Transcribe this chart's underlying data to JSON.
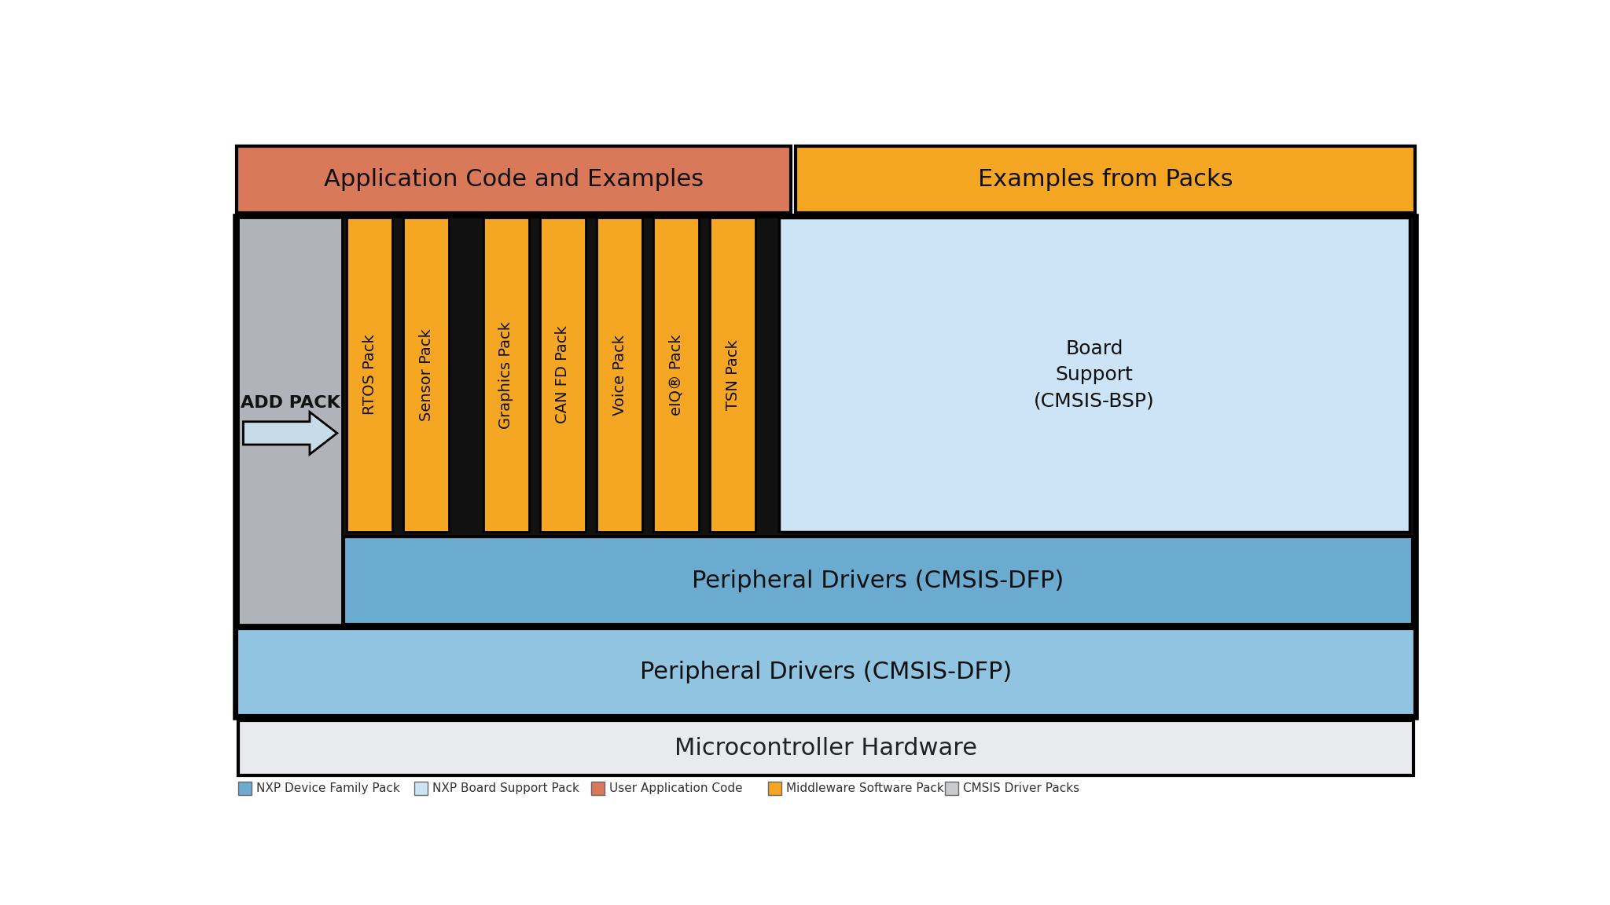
{
  "bg_color": "#ffffff",
  "app_code_color": "#d9795a",
  "app_code_text": "Application Code and Examples",
  "examples_packs_color": "#f5a623",
  "examples_packs_text": "Examples from Packs",
  "add_pack_text": "ADD PACK",
  "middleware_packs": [
    "RTOS Pack",
    "Sensor Pack",
    "Graphics Pack",
    "CAN FD Pack",
    "Voice Pack",
    "eIQ® Pack",
    "TSN Pack"
  ],
  "middleware_color": "#f5a623",
  "bsp_text": "Board\nSupport\n(CMSIS-BSP)",
  "bsp_color": "#cce4f5",
  "inner_blue_bg": "#6aabcf",
  "inner_blue_text": "Peripheral Drivers (CMSIS-DFP)",
  "outer_blue_bg": "#90c4e0",
  "outer_blue_text": "Peripheral Drivers (CMSIS-DFP)",
  "outer_gray_bg": "#b8bcc2",
  "inner_dark_bg": "#111111",
  "addpack_gray": "#b0b4ba",
  "hw_bg": "#e8eaed",
  "hw_text": "Microcontroller Hardware",
  "legend": [
    {
      "color": "#6aabcf",
      "label": "NXP Device Family Pack"
    },
    {
      "color": "#cce4f5",
      "label": "NXP Board Support Pack"
    },
    {
      "color": "#d9795a",
      "label": "User Application Code"
    },
    {
      "color": "#f5a623",
      "label": "Middleware Software Pack"
    },
    {
      "color": "#c8cace",
      "label": "CMSIS Driver Packs"
    }
  ],
  "outer_border_lw": 3,
  "inner_border_lw": 3
}
